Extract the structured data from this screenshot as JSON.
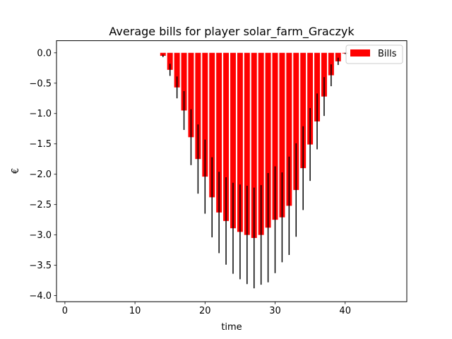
{
  "chart_data": {
    "type": "bar",
    "title": "Average bills for player solar_farm_Graczyk",
    "xlabel": "time",
    "ylabel": "€",
    "xlim": [
      -1.2,
      48.8
    ],
    "ylim": [
      -4.1,
      0.2
    ],
    "xticks": [
      0,
      10,
      20,
      30,
      40
    ],
    "yticks": [
      0.0,
      -0.5,
      -1.0,
      -1.5,
      -2.0,
      -2.5,
      -3.0,
      -3.5,
      -4.0
    ],
    "xtick_labels": [
      "0",
      "10",
      "20",
      "30",
      "40"
    ],
    "ytick_labels": [
      "0.0",
      "−0.5",
      "−1.0",
      "−1.5",
      "−2.0",
      "−2.5",
      "−3.0",
      "−3.5",
      "−4.0"
    ],
    "grid": false,
    "legend": {
      "position": "top-right",
      "entries": [
        "Bills"
      ]
    },
    "series": [
      {
        "name": "Bills",
        "color": "#ff0000",
        "errorbar_color": "#000000",
        "x": [
          14,
          15,
          16,
          17,
          18,
          19,
          20,
          21,
          22,
          23,
          24,
          25,
          26,
          27,
          28,
          29,
          30,
          31,
          32,
          33,
          34,
          35,
          36,
          37,
          38,
          39,
          40
        ],
        "values": [
          -0.05,
          -0.28,
          -0.57,
          -0.95,
          -1.39,
          -1.75,
          -2.04,
          -2.38,
          -2.63,
          -2.77,
          -2.89,
          -2.95,
          -3.0,
          -3.05,
          -3.0,
          -2.88,
          -2.75,
          -2.71,
          -2.52,
          -2.26,
          -1.9,
          -1.51,
          -1.13,
          -0.72,
          -0.37,
          -0.14,
          -0.01
        ],
        "errors": [
          0.02,
          0.1,
          0.18,
          0.32,
          0.46,
          0.57,
          0.61,
          0.66,
          0.67,
          0.72,
          0.75,
          0.78,
          0.81,
          0.83,
          0.82,
          0.9,
          0.88,
          0.74,
          0.81,
          0.77,
          0.69,
          0.6,
          0.46,
          0.32,
          0.18,
          0.06,
          0.01
        ]
      }
    ]
  }
}
